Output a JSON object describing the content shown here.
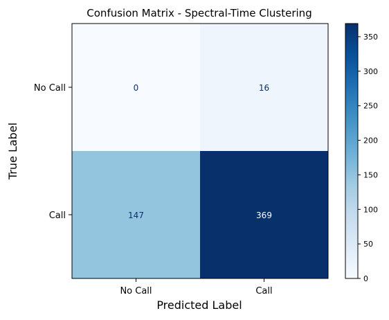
{
  "chart_data": {
    "type": "heatmap",
    "title": "Confusion Matrix - Spectral-Time Clustering",
    "xlabel": "Predicted Label",
    "ylabel": "True Label",
    "x_categories": [
      "No Call",
      "Call"
    ],
    "y_categories": [
      "No Call",
      "Call"
    ],
    "values": [
      [
        0,
        16
      ],
      [
        147,
        369
      ]
    ],
    "colorbar": {
      "range": [
        0,
        369
      ],
      "ticks": [
        0,
        50,
        100,
        150,
        200,
        250,
        300,
        350
      ],
      "colormap": "Blues"
    },
    "colors": {
      "dark_text_color": "#08306b",
      "light_text_color": "#ffffff",
      "axis_color": "#000000"
    }
  }
}
